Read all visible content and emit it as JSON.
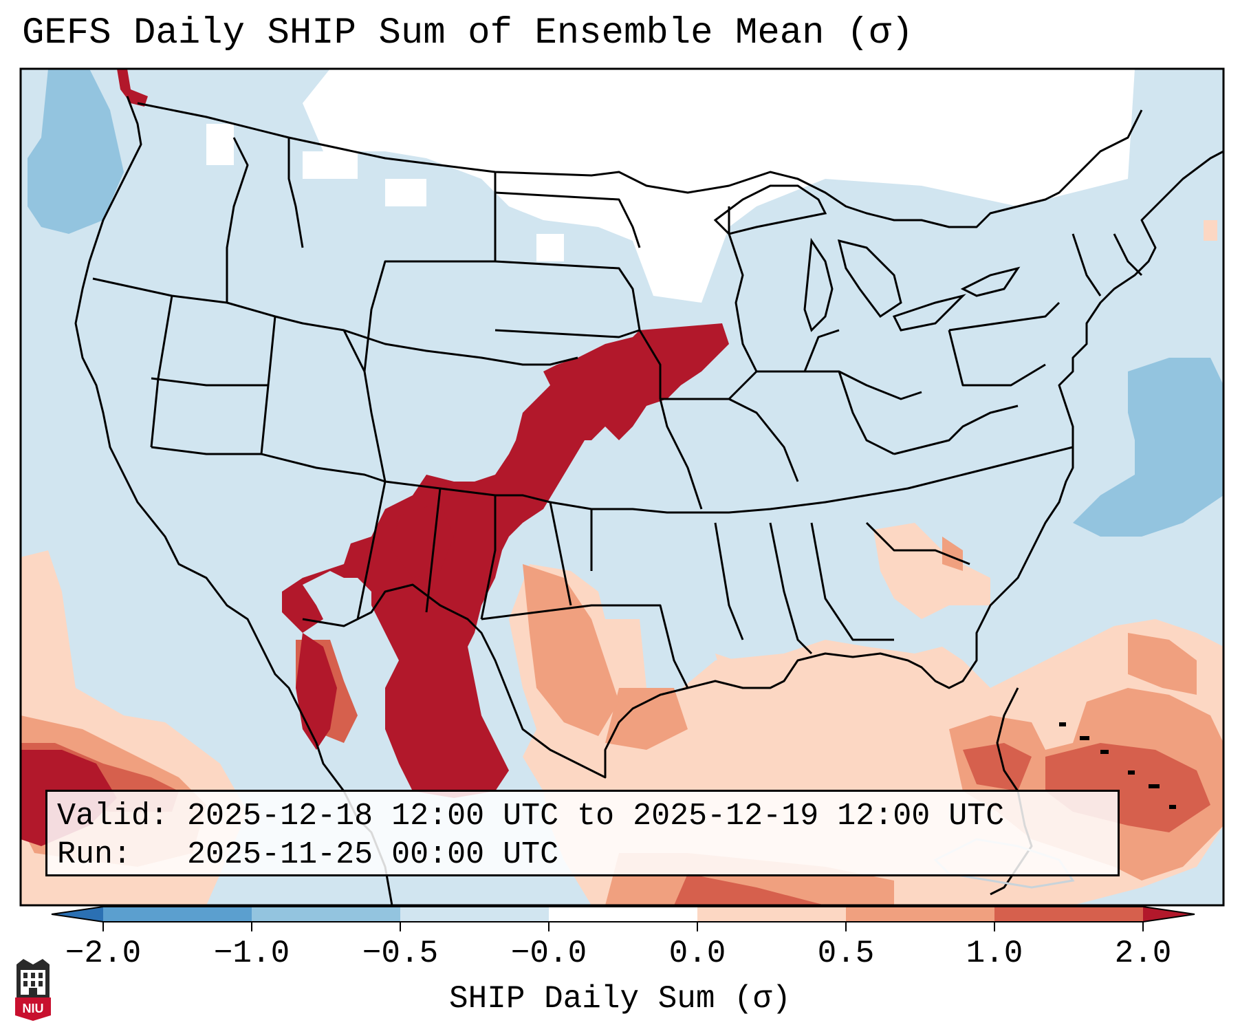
{
  "title": "GEFS Daily SHIP Sum of Ensemble Mean (σ)",
  "info": {
    "valid_label": "Valid:",
    "valid_value": "2025-12-18 12:00 UTC to 2025-12-19 12:00 UTC",
    "run_label": "Run:",
    "run_value": "2025-11-25 00:00 UTC"
  },
  "colorbar": {
    "label": "SHIP Daily Sum (σ)",
    "ticks": [
      "−2.0",
      "−1.0",
      "−0.5",
      "−0.0",
      "0.0",
      "0.5",
      "1.0",
      "2.0"
    ],
    "colors": [
      "#2b70b3",
      "#5b9fcf",
      "#93c4df",
      "#d1e5f0",
      "#ffffff",
      "#fcd7c3",
      "#f0a07f",
      "#d6604d",
      "#b2182b"
    ],
    "extend": "both"
  },
  "map": {
    "region": "Continental United States",
    "fill_colors": {
      "background": "#d1e5f0",
      "neutral": "#ffffff",
      "light_blue": "#93c4df",
      "light_red": "#fcd7c3",
      "mid_red": "#f0a07f",
      "strong_red": "#d6604d",
      "max_red": "#b2182b"
    }
  },
  "logo": {
    "text": "NIU",
    "icon": "niu-logo-icon"
  }
}
